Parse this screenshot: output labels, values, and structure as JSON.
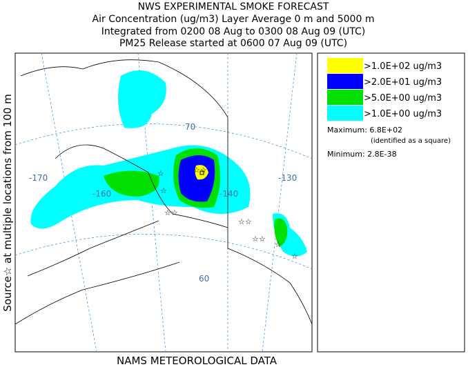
{
  "header": {
    "lines": [
      "NWS EXPERIMENTAL SMOKE FORECAST",
      "Air Concentration (ug/m3) Layer Average    0 m and  5000 m",
      "Integrated from 0200 08 Aug to 0300 08 Aug 09 (UTC)",
      "PM25 Release started at 0600 07 Aug 09 (UTC)"
    ]
  },
  "side_label": "Source☆ at multiple locations    from    100 m",
  "footer": "NAMS METEOROLOGICAL DATA",
  "legend": {
    "items": [
      {
        "label": ">1.0E+02 ug/m3",
        "color": "#ffff00"
      },
      {
        "label": ">2.0E+01 ug/m3",
        "color": "#0000ff"
      },
      {
        "label": ">5.0E+00 ug/m3",
        "color": "#00e000"
      },
      {
        "label": ">1.0E+00 ug/m3",
        "color": "#00ffff"
      }
    ],
    "maximum": "Maximum: 6.8E+02",
    "note": "(identified as a square)",
    "minimum": "Minimum: 2.8E-38"
  },
  "map": {
    "labels": [
      "-170",
      "-160",
      "-140",
      "-130",
      "70",
      "60"
    ]
  }
}
